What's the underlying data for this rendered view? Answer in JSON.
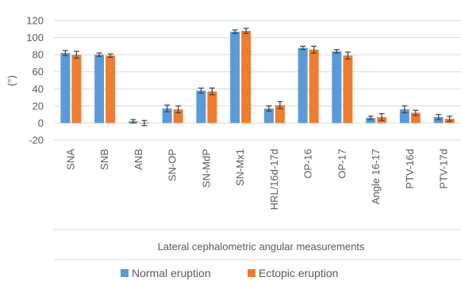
{
  "chart_data": {
    "type": "bar",
    "xlabel": "Lateral cephalometric angular measurements",
    "ylabel": "(°)",
    "ylim": [
      -20,
      120
    ],
    "yticks": [
      -20,
      0,
      20,
      40,
      60,
      80,
      100,
      120
    ],
    "grid": true,
    "legend_position": "bottom",
    "categories": [
      "SNA",
      "SNB",
      "ANB",
      "SN-OP",
      "SN-MdP",
      "SN-Mx1",
      "HRL/16d-17d",
      "OP-16",
      "OP-17",
      "Angle 16-17",
      "PTV-16d",
      "PTV-17d"
    ],
    "series": [
      {
        "name": "Normal eruption",
        "color": "#5B9BD5",
        "values": [
          82,
          80,
          2,
          17,
          38,
          107,
          17,
          88,
          84,
          6,
          16,
          7
        ],
        "errors": [
          3,
          2,
          2,
          4,
          3,
          2,
          3,
          2,
          2,
          2,
          4,
          3
        ]
      },
      {
        "name": "Ectopic eruption",
        "color": "#ED7D31",
        "values": [
          80,
          79,
          0,
          16,
          37,
          108,
          21,
          86,
          79,
          7,
          12,
          5
        ],
        "errors": [
          4,
          2,
          3,
          4,
          4,
          3,
          4,
          4,
          4,
          4,
          3,
          3
        ]
      }
    ]
  }
}
